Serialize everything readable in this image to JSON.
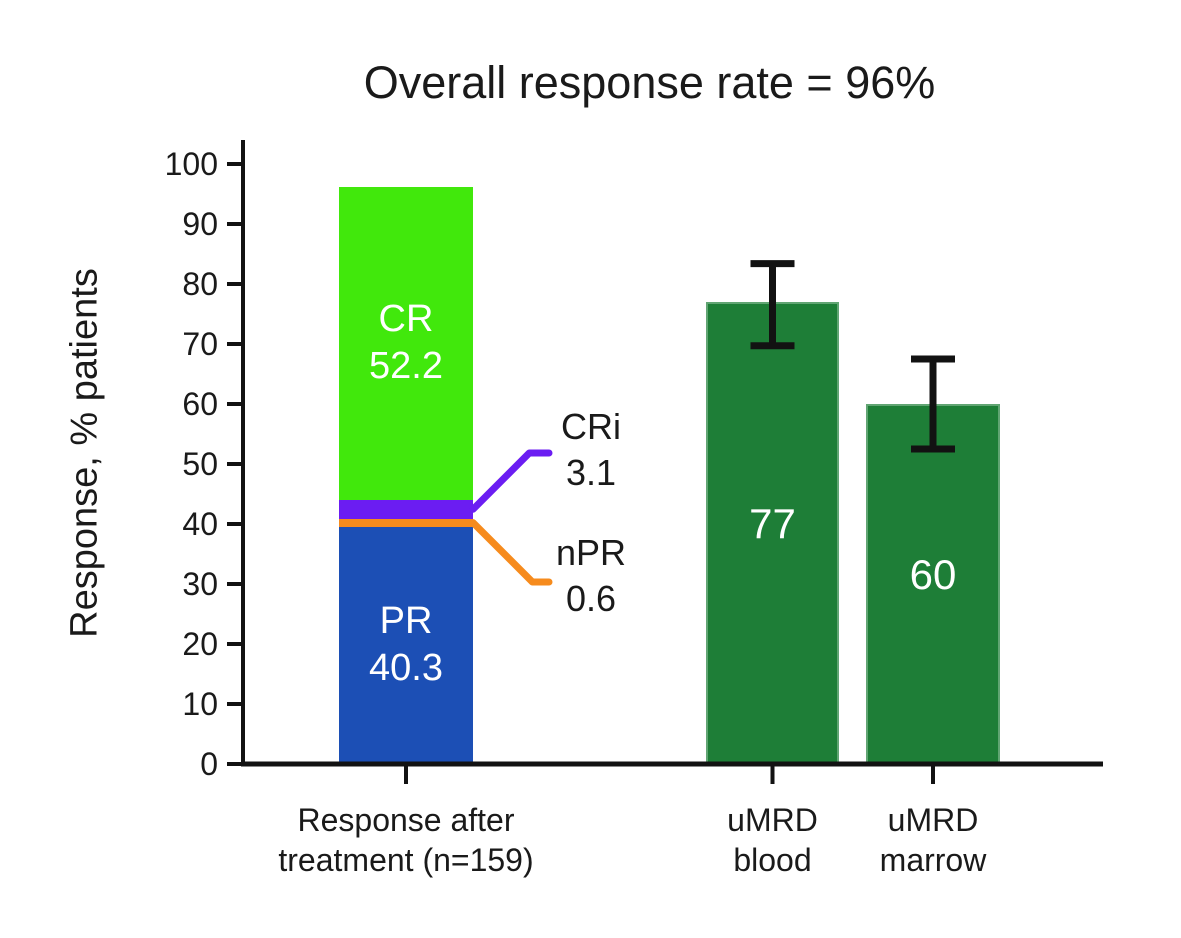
{
  "chart_data": {
    "type": "bar",
    "title": "Overall response rate = 96%",
    "ylabel": "Response, % patients",
    "ylim": [
      0,
      100
    ],
    "yticks": [
      0,
      10,
      20,
      30,
      40,
      50,
      60,
      70,
      80,
      90,
      100
    ],
    "grid": false,
    "legend": "none",
    "overall_response_rate_percent": 96,
    "stacked_bar": {
      "x_label_lines": [
        "Response after",
        "treatment (n=159)"
      ],
      "n": 159,
      "total": 96.2,
      "segments": [
        {
          "label": "PR",
          "value": 40.3,
          "display": "40.3",
          "color": "#1c4fb5",
          "label_position": "inside"
        },
        {
          "label": "nPR",
          "value": 0.6,
          "display": "0.6",
          "color": "#f68b1d",
          "label_position": "callout"
        },
        {
          "label": "CRi",
          "value": 3.1,
          "display": "3.1",
          "color": "#6b1df2",
          "label_position": "callout"
        },
        {
          "label": "CR",
          "value": 52.2,
          "display": "52.2",
          "color": "#41e80c",
          "label_position": "inside"
        }
      ]
    },
    "simple_bars": [
      {
        "x_label_lines": [
          "uMRD",
          "blood"
        ],
        "value": 77,
        "display": "77",
        "error_high": 83.4,
        "error_low": 69.7,
        "color": "#1e7e37"
      },
      {
        "x_label_lines": [
          "uMRD",
          "marrow"
        ],
        "value": 60,
        "display": "60",
        "error_high": 67.5,
        "error_low": 52.5,
        "color": "#1e7e37"
      }
    ]
  },
  "colors": {
    "axis": "#121212",
    "text": "#1a1a1a",
    "inside_label": "#ffffff",
    "background": "#ffffff",
    "pr_blue": "#1c4fb5",
    "npr_orange": "#f68b1d",
    "cri_purple": "#6b1df2",
    "cr_green": "#41e80c",
    "umrd_green": "#1e7e37"
  }
}
